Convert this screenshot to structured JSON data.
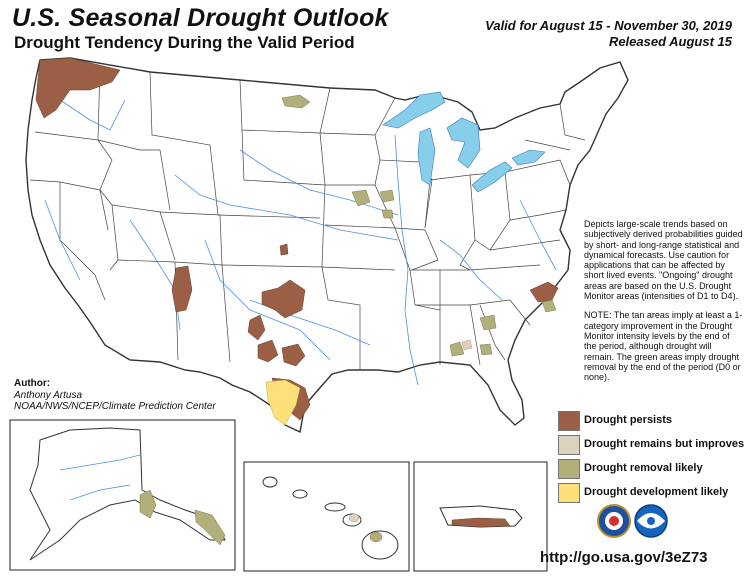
{
  "title": "U.S. Seasonal Drought Outlook",
  "subtitle": "Drought Tendency During the Valid Period",
  "valid_line1": "Valid for August 15 - November 30, 2019",
  "valid_line2": "Released August 15",
  "description_p1": "Depicts large-scale trends based on subjectively derived probabilities guided by short- and long-range statistical and dynamical forecasts. Use caution for applications that can be affected by short lived events. \"Ongoing\" drought areas are based on the U.S. Drought Monitor areas (intensities of D1 to D4).",
  "description_p2": "NOTE: The tan areas imply at least a 1-category improvement in the Drought Monitor intensity levels by the end of the period, although drought will remain. The green areas imply drought removal by the end of the period (D0 or none).",
  "author": {
    "label": "Author:",
    "name": "Anthony Artusa",
    "org": "NOAA/NWS/NCEP/Climate Prediction Center"
  },
  "legend": [
    {
      "label": "Drought persists",
      "color": "#9a5f45"
    },
    {
      "label": "Drought remains but improves",
      "color": "#ddd2c0"
    },
    {
      "label": "Drought removal likely",
      "color": "#b1b07a"
    },
    {
      "label": "Drought development likely",
      "color": "#fde07a"
    }
  ],
  "url": "http://go.usa.gov/3eZ73",
  "colors": {
    "water": "#87ceeb",
    "river": "#4a90e2",
    "border": "#333333",
    "persists": "#9a5f45",
    "removal": "#b1b07a",
    "development": "#fde07a"
  }
}
